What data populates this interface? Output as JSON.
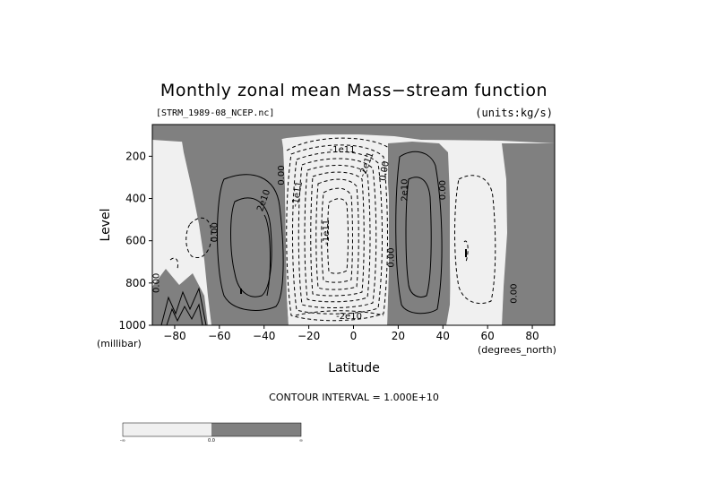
{
  "chart_data": {
    "type": "contour",
    "title": "Monthly zonal mean Mass−stream function",
    "file_label": "[STRM_1989-08_NCEP.nc]",
    "units_label": "(units:kg/s)",
    "xlabel": "Latitude",
    "ylabel": "Level",
    "x_unit": "(degrees_north)",
    "y_unit": "(millibar)",
    "xlim": [
      -90,
      90
    ],
    "ylim": [
      1000,
      50
    ],
    "y_reversed": true,
    "x_ticks": [
      -80,
      -60,
      -40,
      -20,
      0,
      20,
      40,
      60,
      80
    ],
    "x_tick_labels": [
      "−80",
      "−60",
      "−40",
      "−20",
      "0",
      "20",
      "40",
      "60",
      "80"
    ],
    "y_ticks": [
      200,
      400,
      600,
      800,
      1000
    ],
    "y_tick_labels": [
      "200",
      "400",
      "600",
      "800",
      "1000"
    ],
    "contour_interval_text": "CONTOUR INTERVAL = 1.000E+10",
    "contour_interval": 10000000000.0,
    "shading": {
      "negative": "#f0f0f0",
      "positive": "#808080"
    },
    "contour_labels": [
      {
        "text": "0.00",
        "lat": -88,
        "lev": 800,
        "rot": -90
      },
      {
        "text": "0.00",
        "lat": -62,
        "lev": 560,
        "rot": -90
      },
      {
        "text": "2e10",
        "lat": -40,
        "lev": 410,
        "rot": -70
      },
      {
        "text": "0.00",
        "lat": -32,
        "lev": 290,
        "rot": -90
      },
      {
        "text": "-1e11",
        "lat": -25,
        "lev": 380,
        "rot": -80
      },
      {
        "text": "-1e11",
        "lat": -12,
        "lev": 560,
        "rot": -90
      },
      {
        "text": "-1e11",
        "lat": -5,
        "lev": 170,
        "rot": 0
      },
      {
        "text": "0.00",
        "lat": 14,
        "lev": 270,
        "rot": -80
      },
      {
        "text": "-2e11",
        "lat": 6,
        "lev": 240,
        "rot": -70
      },
      {
        "text": "0.00",
        "lat": 17,
        "lev": 680,
        "rot": -90
      },
      {
        "text": "-2e10",
        "lat": -2,
        "lev": 960,
        "rot": 0
      },
      {
        "text": "2e10",
        "lat": 23,
        "lev": 360,
        "rot": -90
      },
      {
        "text": "0.00",
        "lat": 40,
        "lev": 360,
        "rot": -90
      },
      {
        "text": "0.00",
        "lat": 72,
        "lev": 850,
        "rot": -90
      }
    ],
    "colorbar": {
      "labels": [
        "-∞",
        "0.0",
        "∞"
      ],
      "colors": [
        "#f0f0f0",
        "#808080"
      ]
    }
  }
}
